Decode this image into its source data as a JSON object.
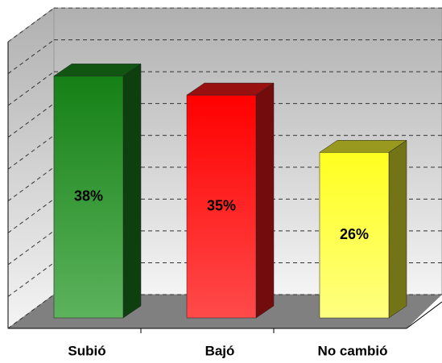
{
  "chart_data": {
    "type": "bar3d",
    "categories": [
      "Subió",
      "Bajó",
      "No cambió"
    ],
    "values": [
      38,
      35,
      26
    ],
    "value_labels": [
      "38%",
      "35%",
      "26%"
    ],
    "colors": [
      "#1e8c1e",
      "#ff1a1a",
      "#ffff33"
    ],
    "ylim": [
      0,
      45
    ],
    "yticks": [
      0,
      5,
      10,
      15,
      20,
      25,
      30,
      35,
      40,
      45
    ],
    "grid": true
  }
}
